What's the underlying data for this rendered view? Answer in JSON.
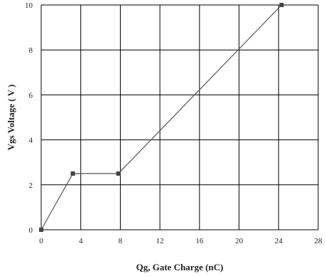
{
  "chart_data": {
    "type": "line",
    "title": "",
    "xlabel": "Qg, Gate Charge (nC)",
    "ylabel": "Vgs Voltage ( V )",
    "xlim": [
      0,
      28
    ],
    "ylim": [
      0,
      10
    ],
    "x_ticks": [
      0,
      4,
      8,
      12,
      16,
      20,
      24,
      28
    ],
    "x_tick_labels": [
      "0",
      "4",
      "8",
      "12",
      "16",
      "20",
      "24",
      "28"
    ],
    "y_ticks": [
      0,
      2,
      4,
      6,
      8,
      10
    ],
    "y_tick_labels": [
      "0",
      "2",
      "4",
      "6",
      "8",
      "10"
    ],
    "grid": true,
    "legend": "none",
    "colors": {
      "line": "#555555",
      "marker": "#444444",
      "grid": "#000000",
      "text": "#222222"
    },
    "series": [
      {
        "x": [
          0,
          3.2,
          7.8,
          24.3
        ],
        "y": [
          0,
          2.5,
          2.5,
          10
        ]
      }
    ]
  }
}
